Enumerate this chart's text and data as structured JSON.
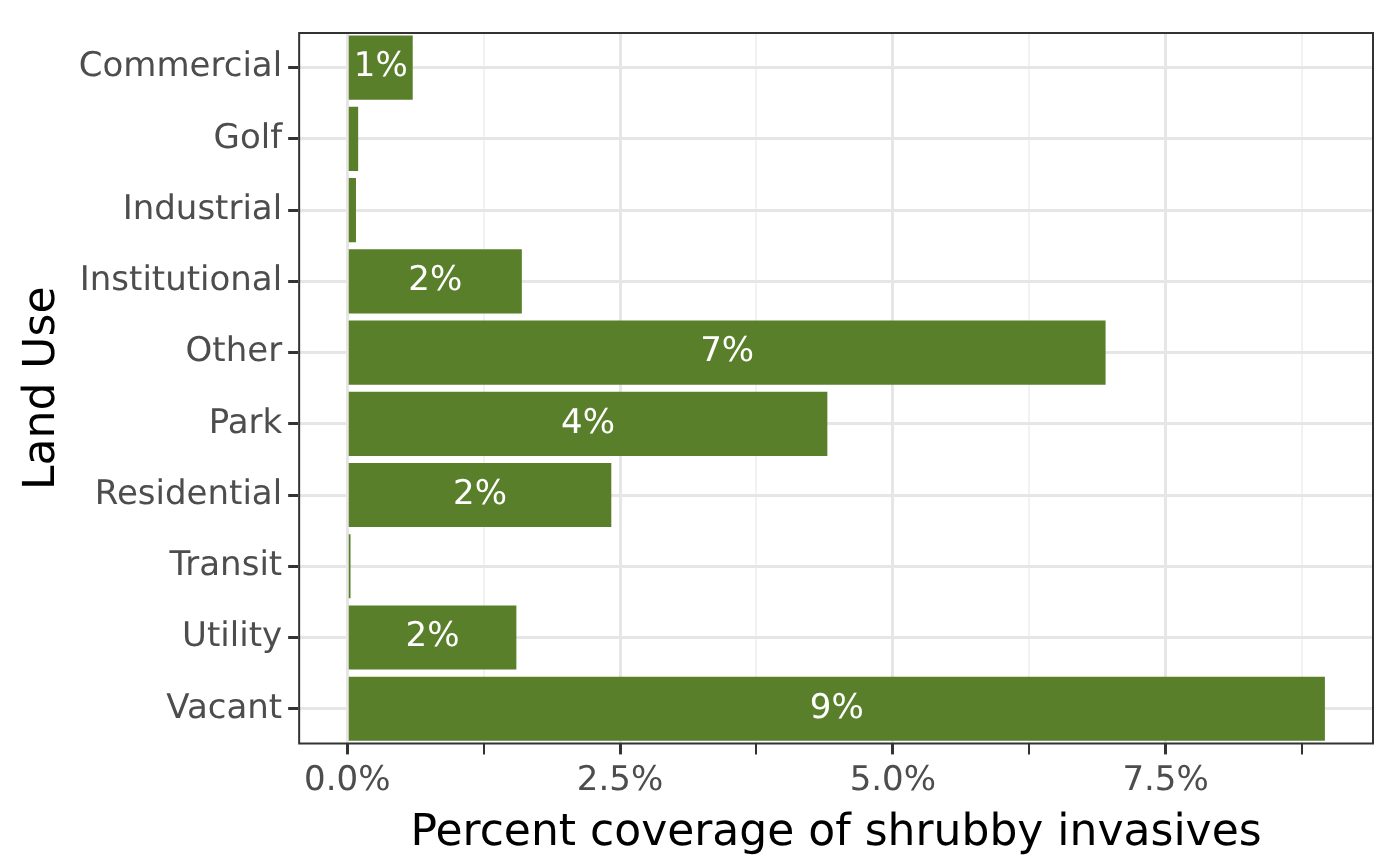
{
  "chart_data": {
    "type": "bar",
    "orientation": "horizontal",
    "xlabel": "Percent coverage of shrubby invasives",
    "ylabel": "Land Use",
    "categories": [
      "Commercial",
      "Golf",
      "Industrial",
      "Institutional",
      "Other",
      "Park",
      "Residential",
      "Transit",
      "Utility",
      "Vacant"
    ],
    "values": [
      0.6,
      0.1,
      0.08,
      1.6,
      6.95,
      4.4,
      2.42,
      0.03,
      1.55,
      8.96
    ],
    "value_labels": [
      "1%",
      null,
      null,
      "2%",
      "7%",
      "4%",
      "2%",
      null,
      "2%",
      "9%"
    ],
    "color": "#5a7f2b",
    "xlim": [
      -0.45,
      9.41
    ],
    "xticks": [
      {
        "value": 0,
        "label": "0.0%"
      },
      {
        "value": 1.25,
        "label": null
      },
      {
        "value": 2.5,
        "label": "2.5%"
      },
      {
        "value": 3.75,
        "label": null
      },
      {
        "value": 5,
        "label": "5.0%"
      },
      {
        "value": 6.25,
        "label": null
      },
      {
        "value": 7.5,
        "label": "7.5%"
      },
      {
        "value": 8.75,
        "label": null
      }
    ],
    "grid": true,
    "legend": false
  }
}
